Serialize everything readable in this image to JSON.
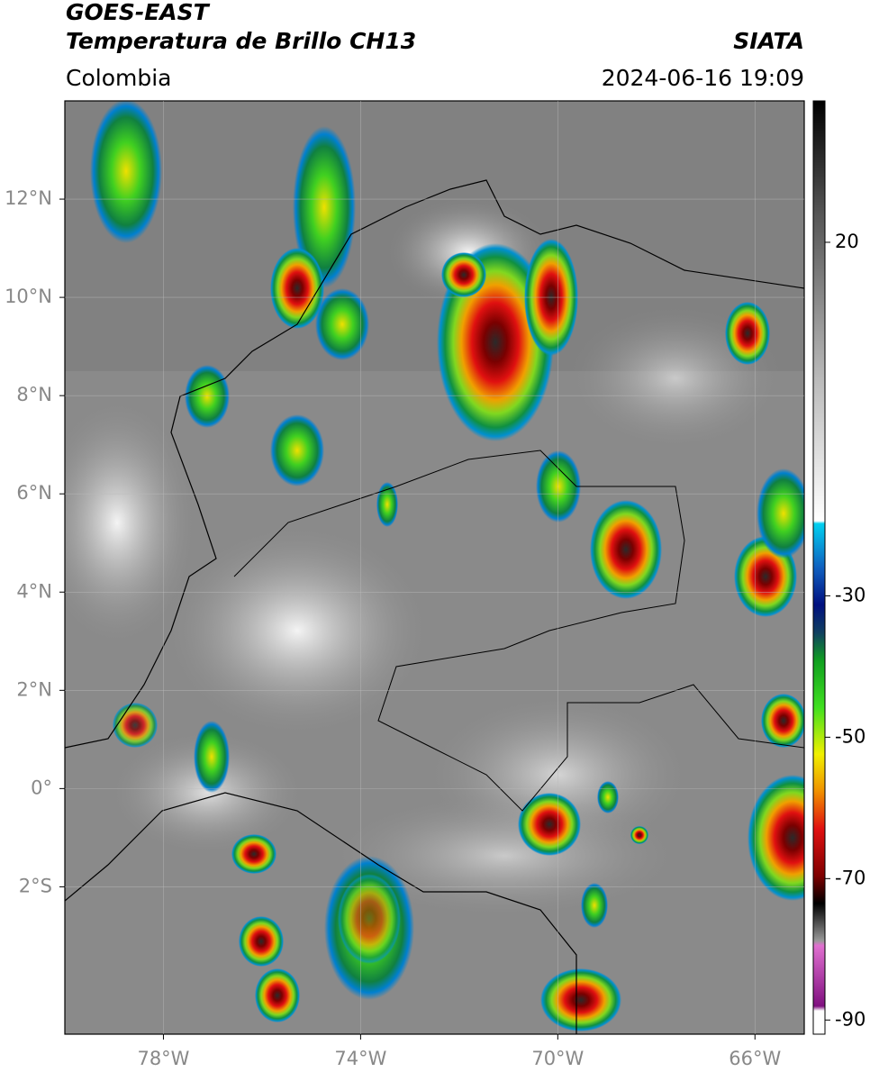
{
  "header": {
    "title": "GOES-EAST",
    "subtitle": "Temperatura de Brillo CH13",
    "source": "SIATA",
    "region": "Colombia",
    "datetime": "2024-06-16 19:09"
  },
  "map": {
    "xlim": [
      -80,
      -65
    ],
    "ylim": [
      -5,
      14
    ],
    "xticks": [
      {
        "value": -78,
        "label": "78°W"
      },
      {
        "value": -74,
        "label": "74°W"
      },
      {
        "value": -70,
        "label": "70°W"
      },
      {
        "value": -66,
        "label": "66°W"
      }
    ],
    "yticks": [
      {
        "value": 12,
        "label": "12°N"
      },
      {
        "value": 10,
        "label": "10°N"
      },
      {
        "value": 8,
        "label": "8°N"
      },
      {
        "value": 6,
        "label": "6°N"
      },
      {
        "value": 4,
        "label": "4°N"
      },
      {
        "value": 2,
        "label": "2°N"
      },
      {
        "value": 0,
        "label": "0°"
      },
      {
        "value": -2,
        "label": "2°S"
      }
    ]
  },
  "colorbar": {
    "lim": [
      40,
      -92
    ],
    "ticks": [
      20,
      -30,
      -50,
      -70,
      -90
    ]
  }
}
